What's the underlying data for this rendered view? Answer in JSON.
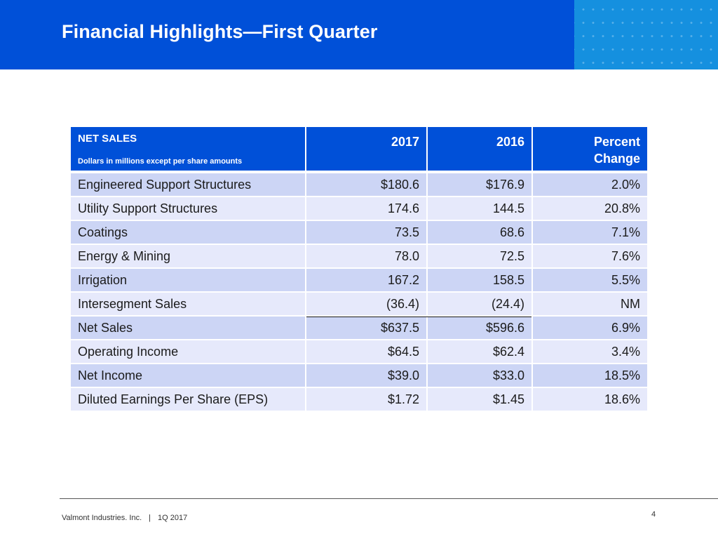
{
  "slide": {
    "title": "Financial Highlights—First Quarter",
    "page_number": "4",
    "colors": {
      "header": "#0050d8",
      "pattern": "#1590df",
      "row_dark": "#ccd5f5",
      "row_light": "#e6e9fb"
    }
  },
  "footer": {
    "company": "Valmont Industries. Inc.",
    "separator": "|",
    "period": "1Q 2017"
  },
  "table": {
    "header": {
      "title": "NET SALES",
      "subtitle": "Dollars in millions except per share amounts",
      "col_2017": "2017",
      "col_2016": "2016",
      "col_pct_line1": "Percent",
      "col_pct_line2": "Change"
    },
    "rows": [
      {
        "label": "Engineered Support Structures",
        "y2017": "$180.6",
        "y2016": "$176.9",
        "pct": "2.0%"
      },
      {
        "label": "Utility Support Structures",
        "y2017": "174.6",
        "y2016": "144.5",
        "pct": "20.8%"
      },
      {
        "label": "Coatings",
        "y2017": "73.5",
        "y2016": "68.6",
        "pct": "7.1%"
      },
      {
        "label": "Energy & Mining",
        "y2017": "78.0",
        "y2016": "72.5",
        "pct": "7.6%"
      },
      {
        "label": "Irrigation",
        "y2017": "167.2",
        "y2016": "158.5",
        "pct": "5.5%"
      },
      {
        "label": "Intersegment Sales",
        "y2017": "(36.4)",
        "y2016": "(24.4)",
        "pct": "NM"
      },
      {
        "label": "Net Sales",
        "y2017": "$637.5",
        "y2016": "$596.6",
        "pct": "6.9%"
      },
      {
        "label": "Operating Income",
        "y2017": "$64.5",
        "y2016": "$62.4",
        "pct": "3.4%"
      },
      {
        "label": "Net Income",
        "y2017": "$39.0",
        "y2016": "$33.0",
        "pct": "18.5%"
      },
      {
        "label": "Diluted Earnings Per Share (EPS)",
        "y2017": "$1.72",
        "y2016": "$1.45",
        "pct": "18.6%"
      }
    ]
  }
}
